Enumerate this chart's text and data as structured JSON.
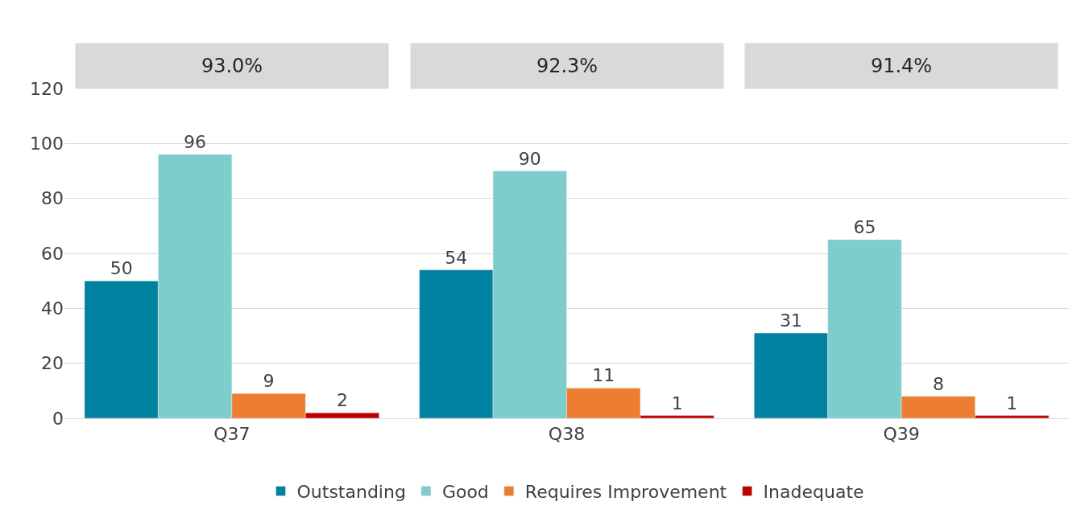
{
  "chart_data": {
    "type": "bar",
    "categories": [
      "Q37",
      "Q38",
      "Q39"
    ],
    "series": [
      {
        "name": "Outstanding",
        "color": "#00819f",
        "values": [
          50,
          54,
          31
        ]
      },
      {
        "name": "Good",
        "color": "#7ecdcb",
        "values": [
          96,
          90,
          65
        ]
      },
      {
        "name": "Requires Improvement",
        "color": "#ed7d31",
        "values": [
          9,
          11,
          8
        ]
      },
      {
        "name": "Inadequate",
        "color": "#c00000",
        "values": [
          2,
          1,
          1
        ]
      }
    ],
    "ylim": [
      0,
      120
    ],
    "yticks": [
      0,
      20,
      40,
      60,
      80,
      100,
      120
    ],
    "grid": "y",
    "legend": "bottom",
    "data_labels": true,
    "annotations": [
      "93.0%",
      "92.3%",
      "91.4%"
    ]
  }
}
